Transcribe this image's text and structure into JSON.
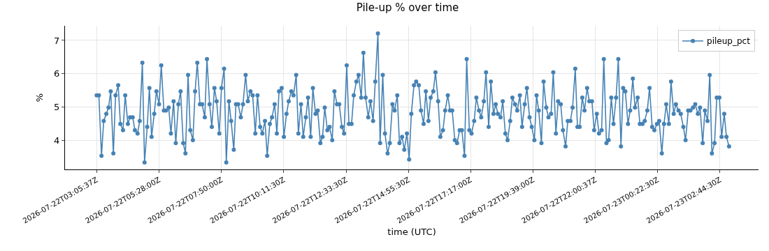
{
  "chart_data": {
    "type": "line",
    "title": "Pile-up % over time",
    "xlabel": "time (UTC)",
    "ylabel": "%",
    "x": [
      "2026-07-22T03:06",
      "2026-07-22T03:11",
      "2026-07-22T03:17",
      "2026-07-22T03:22",
      "2026-07-22T03:28",
      "2026-07-22T03:33",
      "2026-07-22T03:38",
      "2026-07-22T03:44",
      "2026-07-22T03:49",
      "2026-07-22T03:55",
      "2026-07-22T04:00",
      "2026-07-22T04:06",
      "2026-07-22T04:11",
      "2026-07-22T04:17",
      "2026-07-22T04:22",
      "2026-07-22T04:28",
      "2026-07-22T04:33",
      "2026-07-22T04:39",
      "2026-07-22T04:44",
      "2026-07-22T04:50",
      "2026-07-22T04:55",
      "2026-07-22T05:01",
      "2026-07-22T05:06",
      "2026-07-22T05:11",
      "2026-07-22T05:17",
      "2026-07-22T05:22",
      "2026-07-22T05:28",
      "2026-07-22T05:33",
      "2026-07-22T05:39",
      "2026-07-22T05:44",
      "2026-07-22T05:50",
      "2026-07-22T05:55",
      "2026-07-22T06:01",
      "2026-07-22T06:06",
      "2026-07-22T06:12",
      "2026-07-22T06:17",
      "2026-07-22T06:23",
      "2026-07-22T06:28",
      "2026-07-22T06:34",
      "2026-07-22T06:39",
      "2026-07-22T06:45",
      "2026-07-22T06:50",
      "2026-07-22T06:55",
      "2026-07-22T07:01",
      "2026-07-22T07:06",
      "2026-07-22T07:12",
      "2026-07-22T07:17",
      "2026-07-22T07:23",
      "2026-07-22T07:28",
      "2026-07-22T07:34",
      "2026-07-22T07:39",
      "2026-07-22T07:45",
      "2026-07-22T07:50",
      "2026-07-22T07:56",
      "2026-07-22T08:01",
      "2026-07-22T08:07",
      "2026-07-22T08:12",
      "2026-07-22T08:18",
      "2026-07-22T08:23",
      "2026-07-22T08:28",
      "2026-07-22T08:34",
      "2026-07-22T08:39",
      "2026-07-22T08:45",
      "2026-07-22T08:50",
      "2026-07-22T08:56",
      "2026-07-22T09:01",
      "2026-07-22T09:07",
      "2026-07-22T09:12",
      "2026-07-22T09:18",
      "2026-07-22T09:23",
      "2026-07-22T09:29",
      "2026-07-22T09:34",
      "2026-07-22T09:40",
      "2026-07-22T09:45",
      "2026-07-22T09:51",
      "2026-07-22T09:56",
      "2026-07-22T10:01",
      "2026-07-22T10:07",
      "2026-07-22T10:12",
      "2026-07-22T10:18",
      "2026-07-22T10:23",
      "2026-07-22T10:29",
      "2026-07-22T10:34",
      "2026-07-22T10:40",
      "2026-07-22T10:45",
      "2026-07-22T10:51",
      "2026-07-22T10:56",
      "2026-07-22T11:02",
      "2026-07-22T11:07",
      "2026-07-22T11:13",
      "2026-07-22T11:18",
      "2026-07-22T11:24",
      "2026-07-22T11:29",
      "2026-07-22T11:35",
      "2026-07-22T11:40",
      "2026-07-22T11:45",
      "2026-07-22T11:51",
      "2026-07-22T11:56",
      "2026-07-22T12:02",
      "2026-07-22T12:07",
      "2026-07-22T12:13",
      "2026-07-22T12:18",
      "2026-07-22T12:24",
      "2026-07-22T12:29",
      "2026-07-22T12:35",
      "2026-07-22T12:40",
      "2026-07-22T12:46",
      "2026-07-22T12:51",
      "2026-07-22T12:57",
      "2026-07-22T13:02",
      "2026-07-22T13:08",
      "2026-07-22T13:13",
      "2026-07-22T13:18",
      "2026-07-22T13:24",
      "2026-07-22T13:29",
      "2026-07-22T13:35",
      "2026-07-22T13:40",
      "2026-07-22T13:46",
      "2026-07-22T13:51",
      "2026-07-22T13:57",
      "2026-07-22T14:02",
      "2026-07-22T14:08",
      "2026-07-22T14:13",
      "2026-07-22T14:19",
      "2026-07-22T14:24",
      "2026-07-22T14:30",
      "2026-07-22T14:35",
      "2026-07-22T14:41",
      "2026-07-22T14:46",
      "2026-07-22T14:52",
      "2026-07-22T14:57",
      "2026-07-22T15:02",
      "2026-07-22T15:08",
      "2026-07-22T15:13",
      "2026-07-22T15:19",
      "2026-07-22T15:24",
      "2026-07-22T15:30",
      "2026-07-22T15:35",
      "2026-07-22T15:41",
      "2026-07-22T15:46",
      "2026-07-22T15:52",
      "2026-07-22T15:57",
      "2026-07-22T16:03",
      "2026-07-22T16:08",
      "2026-07-22T16:14",
      "2026-07-22T16:19",
      "2026-07-22T16:25",
      "2026-07-22T16:30",
      "2026-07-22T16:35",
      "2026-07-22T16:41",
      "2026-07-22T16:46",
      "2026-07-22T16:52",
      "2026-07-22T16:57",
      "2026-07-22T17:03",
      "2026-07-22T17:08",
      "2026-07-22T17:14",
      "2026-07-22T17:19",
      "2026-07-22T17:25",
      "2026-07-22T17:30",
      "2026-07-22T17:36",
      "2026-07-22T17:41",
      "2026-07-22T17:47",
      "2026-07-22T17:52",
      "2026-07-22T17:58",
      "2026-07-22T18:03",
      "2026-07-22T18:09",
      "2026-07-22T18:14",
      "2026-07-22T18:19",
      "2026-07-22T18:25",
      "2026-07-22T18:30",
      "2026-07-22T18:36",
      "2026-07-22T18:41",
      "2026-07-22T18:47",
      "2026-07-22T18:52",
      "2026-07-22T18:58",
      "2026-07-22T19:03",
      "2026-07-22T19:09",
      "2026-07-22T19:14",
      "2026-07-22T19:20",
      "2026-07-22T19:25",
      "2026-07-22T19:31",
      "2026-07-22T19:36",
      "2026-07-22T19:42",
      "2026-07-22T19:47",
      "2026-07-22T19:52",
      "2026-07-22T19:58",
      "2026-07-22T20:03",
      "2026-07-22T20:09",
      "2026-07-22T20:14",
      "2026-07-22T20:20",
      "2026-07-22T20:25",
      "2026-07-22T20:31",
      "2026-07-22T20:36",
      "2026-07-22T20:42",
      "2026-07-22T20:47",
      "2026-07-22T20:53",
      "2026-07-22T20:58",
      "2026-07-22T21:04",
      "2026-07-22T21:09",
      "2026-07-22T21:15",
      "2026-07-22T21:20",
      "2026-07-22T21:25",
      "2026-07-22T21:31",
      "2026-07-22T21:36",
      "2026-07-22T21:42",
      "2026-07-22T21:47",
      "2026-07-22T21:53",
      "2026-07-22T21:58",
      "2026-07-22T22:04",
      "2026-07-22T22:09",
      "2026-07-22T22:15",
      "2026-07-22T22:20",
      "2026-07-22T22:26",
      "2026-07-22T22:31",
      "2026-07-22T22:37",
      "2026-07-22T22:42",
      "2026-07-22T22:48",
      "2026-07-22T22:53",
      "2026-07-22T22:59",
      "2026-07-22T23:04",
      "2026-07-22T23:09",
      "2026-07-22T23:15",
      "2026-07-22T23:20",
      "2026-07-22T23:26",
      "2026-07-22T23:31",
      "2026-07-22T23:37",
      "2026-07-22T23:42",
      "2026-07-22T23:48",
      "2026-07-22T23:53",
      "2026-07-22T23:59",
      "2026-07-23T00:04",
      "2026-07-23T00:10",
      "2026-07-23T00:15",
      "2026-07-23T00:21",
      "2026-07-23T00:26",
      "2026-07-23T00:32",
      "2026-07-23T00:37",
      "2026-07-23T00:42",
      "2026-07-23T00:48",
      "2026-07-23T00:53",
      "2026-07-23T00:59",
      "2026-07-23T01:04",
      "2026-07-23T01:10",
      "2026-07-23T01:15",
      "2026-07-23T01:21",
      "2026-07-23T01:26",
      "2026-07-23T01:32",
      "2026-07-23T01:37",
      "2026-07-23T01:43",
      "2026-07-23T01:48",
      "2026-07-23T01:54",
      "2026-07-23T01:59",
      "2026-07-23T02:05",
      "2026-07-23T02:10",
      "2026-07-23T02:16",
      "2026-07-23T02:21",
      "2026-07-23T02:26",
      "2026-07-23T02:32",
      "2026-07-23T02:37",
      "2026-07-23T02:43",
      "2026-07-23T02:48",
      "2026-07-23T02:54",
      "2026-07-23T02:59",
      "2026-07-23T03:05"
    ],
    "series": [
      {
        "name": "pileup_pct",
        "color": "#4682b4",
        "values": [
          5.35,
          5.35,
          3.53,
          4.58,
          4.79,
          4.98,
          5.47,
          3.6,
          5.35,
          5.65,
          4.49,
          4.3,
          5.35,
          4.49,
          4.69,
          4.69,
          4.3,
          4.2,
          4.58,
          6.33,
          3.33,
          4.4,
          5.57,
          4.1,
          4.79,
          5.47,
          5.08,
          6.25,
          4.89,
          4.89,
          4.98,
          4.2,
          5.17,
          3.91,
          5.08,
          5.47,
          3.91,
          3.6,
          5.96,
          4.3,
          4.0,
          5.47,
          6.33,
          5.08,
          5.08,
          4.69,
          6.44,
          5.08,
          4.4,
          5.57,
          5.17,
          4.2,
          5.57,
          6.15,
          3.33,
          5.17,
          4.58,
          3.71,
          5.08,
          5.08,
          4.69,
          5.08,
          5.96,
          5.17,
          5.47,
          5.35,
          4.2,
          5.35,
          4.4,
          4.2,
          4.58,
          3.53,
          4.49,
          4.69,
          5.08,
          4.2,
          5.47,
          5.57,
          4.1,
          4.79,
          5.17,
          5.47,
          5.35,
          5.96,
          4.2,
          5.08,
          4.1,
          4.69,
          5.28,
          4.1,
          5.57,
          4.79,
          4.89,
          3.91,
          4.1,
          4.98,
          4.3,
          4.4,
          4.0,
          5.47,
          5.08,
          5.08,
          4.4,
          4.2,
          6.25,
          4.49,
          4.49,
          5.35,
          5.76,
          5.96,
          5.28,
          6.63,
          5.28,
          4.69,
          5.17,
          4.58,
          5.76,
          7.21,
          3.91,
          5.96,
          4.2,
          3.6,
          3.91,
          5.08,
          4.89,
          5.35,
          3.91,
          4.1,
          3.71,
          4.2,
          3.42,
          4.79,
          5.65,
          5.76,
          5.65,
          4.89,
          4.49,
          5.47,
          4.58,
          5.28,
          5.47,
          6.04,
          5.17,
          4.1,
          4.3,
          4.89,
          5.35,
          4.89,
          4.89,
          4.0,
          3.91,
          4.3,
          4.3,
          3.53,
          6.44,
          4.3,
          4.2,
          4.58,
          5.28,
          4.89,
          4.69,
          5.17,
          6.04,
          4.4,
          5.76,
          4.79,
          5.08,
          4.79,
          4.69,
          5.17,
          4.2,
          4.0,
          4.58,
          5.28,
          5.08,
          4.89,
          5.35,
          4.4,
          5.08,
          5.57,
          4.69,
          4.4,
          4.0,
          5.35,
          4.89,
          3.91,
          5.76,
          4.98,
          4.69,
          4.79,
          6.04,
          4.2,
          5.17,
          5.08,
          4.3,
          3.81,
          4.58,
          4.58,
          4.98,
          6.15,
          4.4,
          4.4,
          5.28,
          4.89,
          5.57,
          5.17,
          5.17,
          4.3,
          4.79,
          4.2,
          4.3,
          6.44,
          3.91,
          4.0,
          5.28,
          4.49,
          5.28,
          6.44,
          3.81,
          5.57,
          5.47,
          4.49,
          4.89,
          5.85,
          4.98,
          5.28,
          4.49,
          4.49,
          4.58,
          4.89,
          5.57,
          4.4,
          4.3,
          4.49,
          4.58,
          3.6,
          4.49,
          5.08,
          4.49,
          5.76,
          4.79,
          5.08,
          4.89,
          4.79,
          4.4,
          4.0,
          4.89,
          4.89,
          4.98,
          5.08,
          4.79,
          4.98,
          3.91,
          4.89,
          4.58,
          5.96,
          3.6,
          3.91,
          5.28,
          5.28,
          4.1,
          4.79,
          4.1,
          3.81
        ]
      }
    ],
    "xlim": [
      "2026-07-22T01:54",
      "2026-07-23T04:12"
    ],
    "xticks": [
      {
        "value": "2026-07-22T03:05:37",
        "label": "2026-07-22T03:05:37Z"
      },
      {
        "value": "2026-07-22T05:28:00",
        "label": "2026-07-22T05:28:00Z"
      },
      {
        "value": "2026-07-22T07:50:00",
        "label": "2026-07-22T07:50:00Z"
      },
      {
        "value": "2026-07-22T10:11:30",
        "label": "2026-07-22T10:11:30Z"
      },
      {
        "value": "2026-07-22T12:33:30",
        "label": "2026-07-22T12:33:30Z"
      },
      {
        "value": "2026-07-22T14:55:30",
        "label": "2026-07-22T14:55:30Z"
      },
      {
        "value": "2026-07-22T17:17:00",
        "label": "2026-07-22T17:17:00Z"
      },
      {
        "value": "2026-07-22T19:39:00",
        "label": "2026-07-22T19:39:00Z"
      },
      {
        "value": "2026-07-22T22:00:37",
        "label": "2026-07-22T22:00:37Z"
      },
      {
        "value": "2026-07-23T00:22:30",
        "label": "2026-07-23T00:22:30Z"
      },
      {
        "value": "2026-07-23T02:44:30",
        "label": "2026-07-23T02:44:30Z"
      }
    ],
    "ylim": [
      3.12,
      7.44
    ],
    "yticks": [
      4,
      5,
      6,
      7
    ],
    "grid": true,
    "legend": "top right",
    "marker": "circle",
    "line_style": "solid"
  }
}
